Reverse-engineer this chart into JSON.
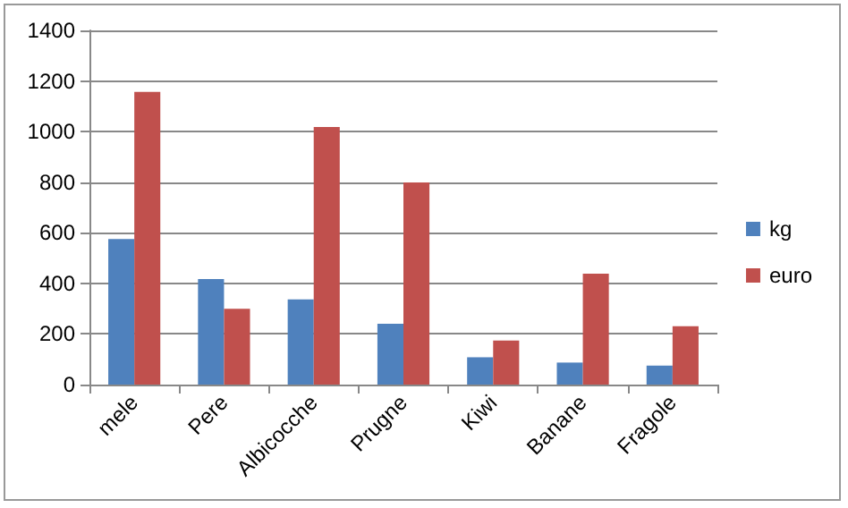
{
  "chart_data": {
    "type": "bar",
    "categories": [
      "mele",
      "Pere",
      "Albicocche",
      "Prugne",
      "Kiwi",
      "Banane",
      "Fragole"
    ],
    "series": [
      {
        "name": "kg",
        "color": "#4f81bd",
        "values": [
          575,
          417,
          337,
          240,
          108,
          87,
          75
        ]
      },
      {
        "name": "euro",
        "color": "#c0504d",
        "values": [
          1157,
          300,
          1018,
          799,
          174,
          438,
          231
        ]
      }
    ],
    "ylim": [
      0,
      1400
    ],
    "yticks": [
      0,
      200,
      400,
      600,
      800,
      1000,
      1200,
      1400
    ],
    "grid": "y",
    "legend": "right"
  }
}
